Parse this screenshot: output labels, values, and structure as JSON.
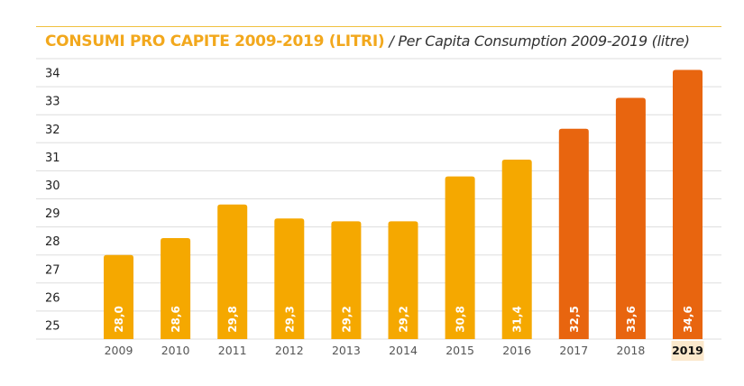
{
  "chart_data": {
    "type": "bar",
    "title": "CONSUMI PRO CAPITE 2009-2019 (LITRI)",
    "subtitle": "/ Per Capita Consumption 2009-2019 (litre)",
    "categories": [
      "2009",
      "2010",
      "2011",
      "2012",
      "2013",
      "2014",
      "2015",
      "2016",
      "2017",
      "2018",
      "2019"
    ],
    "values": [
      28.0,
      28.6,
      29.8,
      29.3,
      29.2,
      29.2,
      30.8,
      31.4,
      32.5,
      33.6,
      34.6
    ],
    "data_labels": [
      "28,0",
      "28,6",
      "29,8",
      "29,3",
      "29,2",
      "29,2",
      "30,8",
      "31,4",
      "32,5",
      "33,6",
      "34,6"
    ],
    "y_ticks": [
      25,
      26,
      27,
      28,
      29,
      30,
      31,
      32,
      33,
      34
    ],
    "ylim": [
      25,
      35
    ],
    "grid": true,
    "highlighted_category": "2019",
    "colors": {
      "earlier": "#f5a800",
      "recent": "#e8650f",
      "highlight_bg": "#fbe8cc",
      "grid": "#dddddd"
    },
    "recent_from": "2017"
  }
}
